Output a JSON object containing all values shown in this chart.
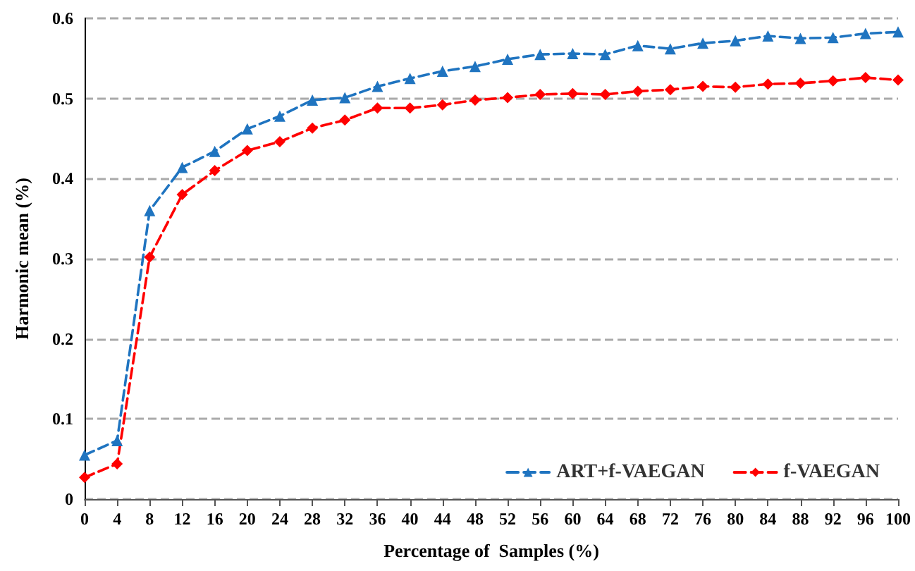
{
  "chart_data": {
    "type": "line",
    "xlabel": "Percentage of  Samples (%)",
    "ylabel": "Harmonic mean (%)",
    "x": [
      0,
      4,
      8,
      12,
      16,
      20,
      24,
      28,
      32,
      36,
      40,
      44,
      48,
      52,
      56,
      60,
      64,
      68,
      72,
      76,
      80,
      84,
      88,
      92,
      96,
      100
    ],
    "series": [
      {
        "name": "ART+f-VAEGAN",
        "color": "#1f74c0",
        "marker": "triangle",
        "values": [
          0.055,
          0.073,
          0.36,
          0.414,
          0.434,
          0.462,
          0.478,
          0.498,
          0.501,
          0.515,
          0.525,
          0.534,
          0.54,
          0.549,
          0.555,
          0.556,
          0.555,
          0.566,
          0.562,
          0.569,
          0.572,
          0.578,
          0.575,
          0.576,
          0.581,
          0.583
        ]
      },
      {
        "name": "f-VAEGAN",
        "color": "#ff0000",
        "marker": "diamond",
        "values": [
          0.027,
          0.044,
          0.302,
          0.38,
          0.41,
          0.435,
          0.446,
          0.463,
          0.473,
          0.488,
          0.488,
          0.492,
          0.498,
          0.501,
          0.505,
          0.506,
          0.505,
          0.509,
          0.511,
          0.515,
          0.514,
          0.518,
          0.519,
          0.522,
          0.526,
          0.523
        ]
      }
    ],
    "xlim": [
      0,
      100
    ],
    "xticks": [
      0,
      4,
      8,
      12,
      16,
      20,
      24,
      28,
      32,
      36,
      40,
      44,
      48,
      52,
      56,
      60,
      64,
      68,
      72,
      76,
      80,
      84,
      88,
      92,
      96,
      100
    ],
    "ylim": [
      0,
      0.6
    ],
    "yticks": [
      0,
      0.1,
      0.2,
      0.3,
      0.4,
      0.5,
      0.6
    ],
    "grid": "y",
    "legend": "bottom right",
    "line_style": "dashed"
  }
}
